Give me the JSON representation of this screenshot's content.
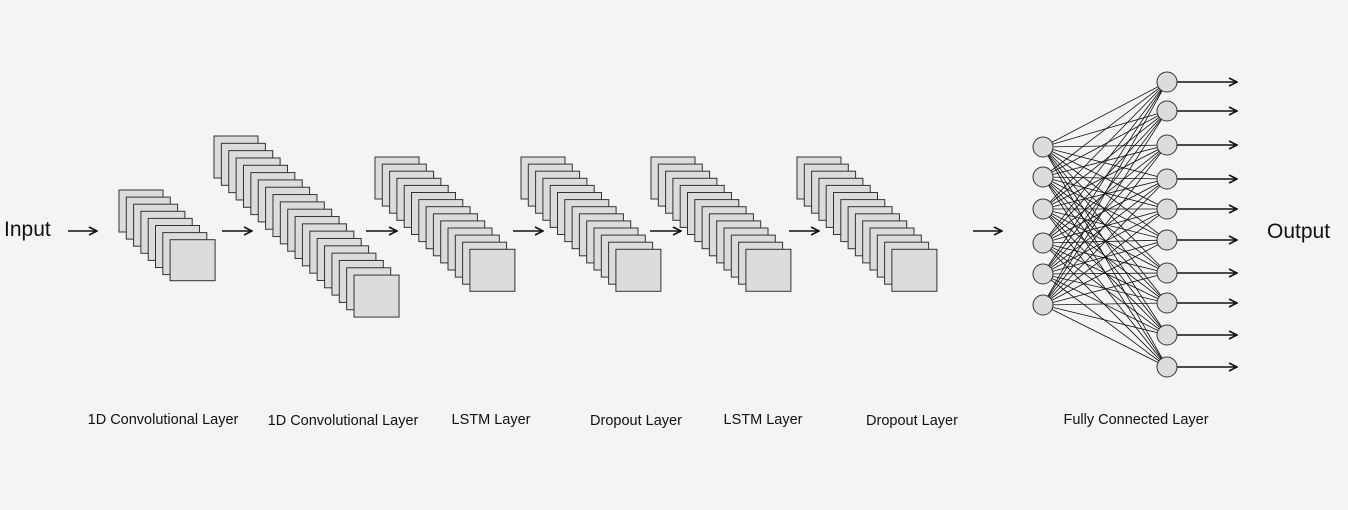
{
  "input_label": "Input",
  "output_label": "Output",
  "layers": [
    {
      "label": "1D Convolutional Layer",
      "type": "conv1d",
      "stack_count": 8
    },
    {
      "label": "1D Convolutional Layer",
      "type": "conv1d",
      "stack_count": 20
    },
    {
      "label": "LSTM Layer",
      "type": "lstm",
      "stack_count": 14
    },
    {
      "label": "Dropout Layer",
      "type": "dropout",
      "stack_count": 14
    },
    {
      "label": "LSTM Layer",
      "type": "lstm",
      "stack_count": 14
    },
    {
      "label": "Dropout Layer",
      "type": "dropout",
      "stack_count": 14
    },
    {
      "label": "Fully Connected Layer",
      "type": "dense",
      "input_nodes": 6,
      "output_nodes": 10
    }
  ],
  "colors": {
    "background": "#f4f4f4",
    "fill": "#dcdcdc",
    "stroke": "#333333",
    "arrow": "#111111"
  }
}
